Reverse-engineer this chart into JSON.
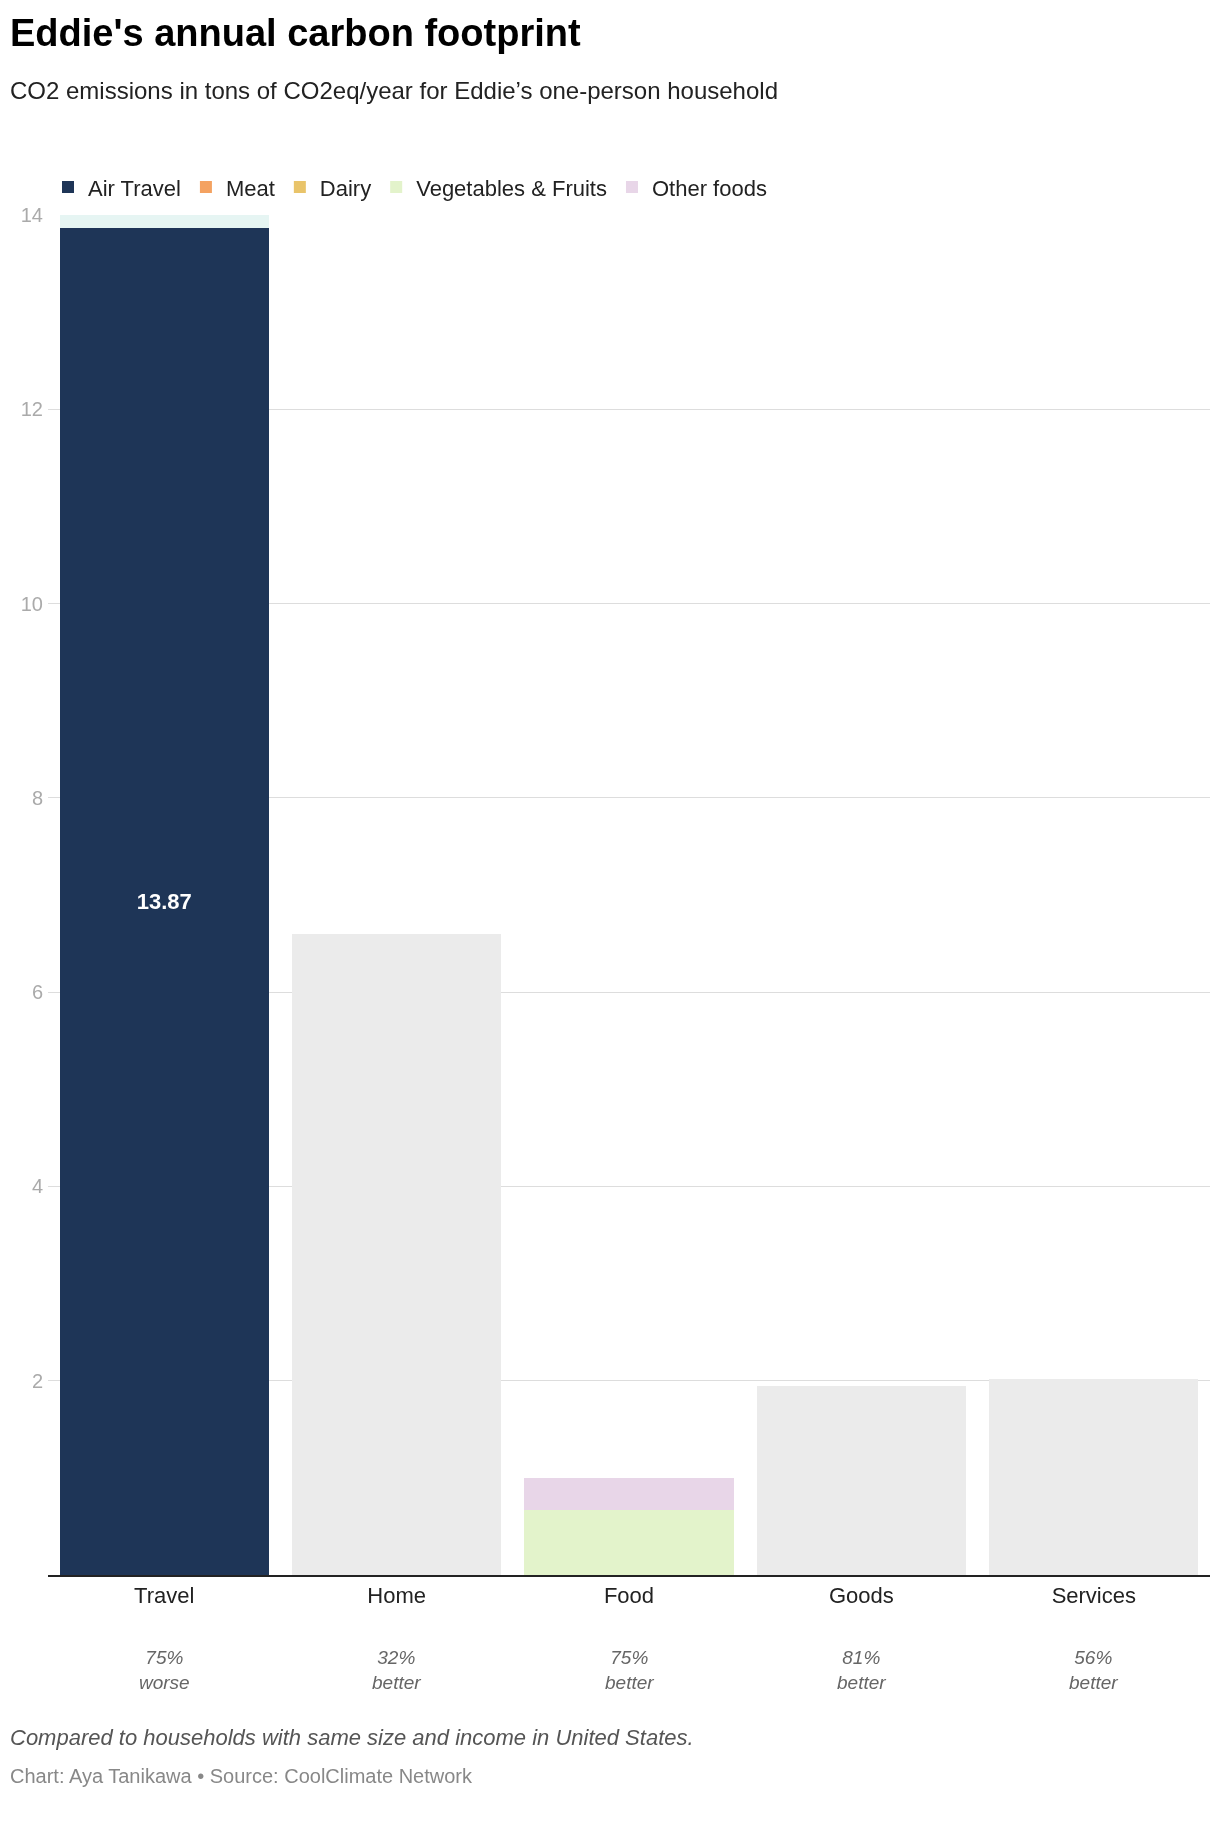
{
  "chart_data": {
    "type": "bar",
    "title": "Eddie's annual carbon footprint",
    "subtitle": "CO2 emissions in tons of CO2eq/year for Eddie’s one-person household",
    "categories": [
      "Travel",
      "Home",
      "Food",
      "Goods",
      "Services"
    ],
    "stacked": true,
    "series": [
      {
        "name": "Air Travel",
        "color": "#1e3557",
        "values": [
          13.87,
          null,
          null,
          null,
          null
        ],
        "value_labels": [
          "13.87",
          null,
          null,
          null,
          null
        ]
      },
      {
        "name": "Meat",
        "color": "#f4a261",
        "values": [
          null,
          null,
          0,
          null,
          null
        ]
      },
      {
        "name": "Dairy",
        "color": "#e9c46a",
        "values": [
          null,
          null,
          0,
          null,
          null
        ]
      },
      {
        "name": "Vegetables & Fruits",
        "color": "#e3f3cb",
        "values": [
          null,
          null,
          0.67,
          null,
          null
        ]
      },
      {
        "name": "Other foods",
        "color": "#e8d6e8",
        "values": [
          null,
          null,
          0.33,
          null,
          null
        ]
      },
      {
        "color": "#e6f5f3",
        "values": [
          0.13,
          null,
          null,
          null,
          null
        ]
      },
      {
        "color": "#ebebeb",
        "values": [
          null,
          6.6,
          null,
          1.95,
          2.02
        ]
      }
    ],
    "ylim": [
      0,
      14
    ],
    "yticks": [
      2,
      4,
      6,
      8,
      10,
      12,
      14
    ],
    "grid": "y",
    "legend": "top left",
    "annotations": [
      "75%\nworse",
      "32%\nbetter",
      "75%\nbetter",
      "81%\nbetter",
      "56%\nbetter",
      "Compared to households with same size and income in United States.",
      "Chart: Aya Tanikawa • Source: CoolClimate Network"
    ]
  }
}
